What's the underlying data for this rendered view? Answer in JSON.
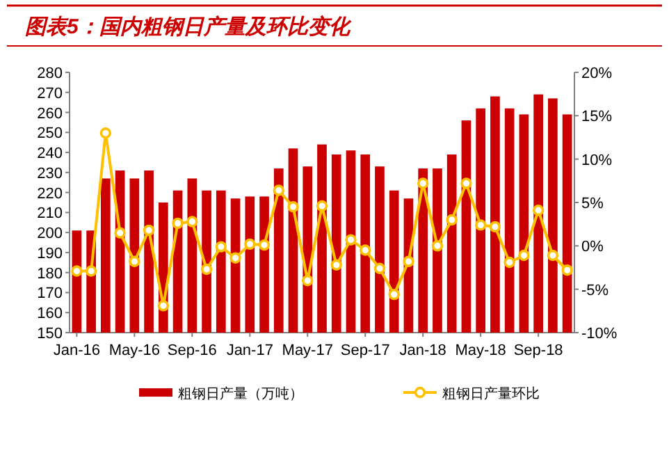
{
  "chart_data": {
    "type": "bar",
    "title": "图表5：国内粗钢日产量及环比变化",
    "categories": [
      "Jan-16",
      null,
      null,
      null,
      "May-16",
      null,
      null,
      null,
      "Sep-16",
      null,
      null,
      null,
      "Jan-17",
      null,
      null,
      null,
      "May-17",
      null,
      null,
      null,
      "Sep-17",
      null,
      null,
      null,
      "Jan-18",
      null,
      null,
      null,
      "May-18",
      null,
      null,
      null,
      "Sep-18",
      null,
      null
    ],
    "series": [
      {
        "name": "粗钢日产量（万吨）",
        "color": "#cc0000",
        "values": [
          201,
          201,
          227,
          231,
          227,
          231,
          215,
          221,
          227,
          221,
          221,
          217,
          218,
          218,
          232,
          242,
          233,
          244,
          239,
          241,
          239,
          233,
          221,
          217,
          232,
          232,
          239,
          256,
          262,
          268,
          262,
          259,
          269,
          267,
          259
        ]
      },
      {
        "name": "粗钢日产量环比",
        "type": "line",
        "axis": "y2",
        "color": "#ffc000",
        "values": [
          -2.9,
          -2.9,
          13.0,
          1.5,
          -1.8,
          1.8,
          -6.9,
          2.6,
          2.8,
          -2.7,
          -0.1,
          -1.4,
          0.2,
          0.1,
          6.4,
          4.5,
          -4.0,
          4.6,
          -2.2,
          0.7,
          -0.5,
          -2.6,
          -5.6,
          -1.8,
          7.2,
          0,
          3.0,
          7.2,
          2.4,
          2.2,
          -1.9,
          -1.1,
          4.1,
          -1.1,
          -2.8
        ]
      }
    ],
    "ylim": [
      150,
      280
    ],
    "yticks": [
      150,
      160,
      170,
      180,
      190,
      200,
      210,
      220,
      230,
      240,
      250,
      260,
      270,
      280
    ],
    "y2lim": [
      -10,
      20
    ],
    "y2ticks": [
      {
        "value": -10,
        "label": "-10%"
      },
      {
        "value": -5,
        "label": "-5%"
      },
      {
        "value": 0,
        "label": "0%"
      },
      {
        "value": 5,
        "label": "5%"
      },
      {
        "value": 10,
        "label": "10%"
      },
      {
        "value": 15,
        "label": "15%"
      },
      {
        "value": 20,
        "label": "20%"
      }
    ],
    "grid": false,
    "legend": "bottom",
    "marker": "circle",
    "line_style": "solid"
  }
}
